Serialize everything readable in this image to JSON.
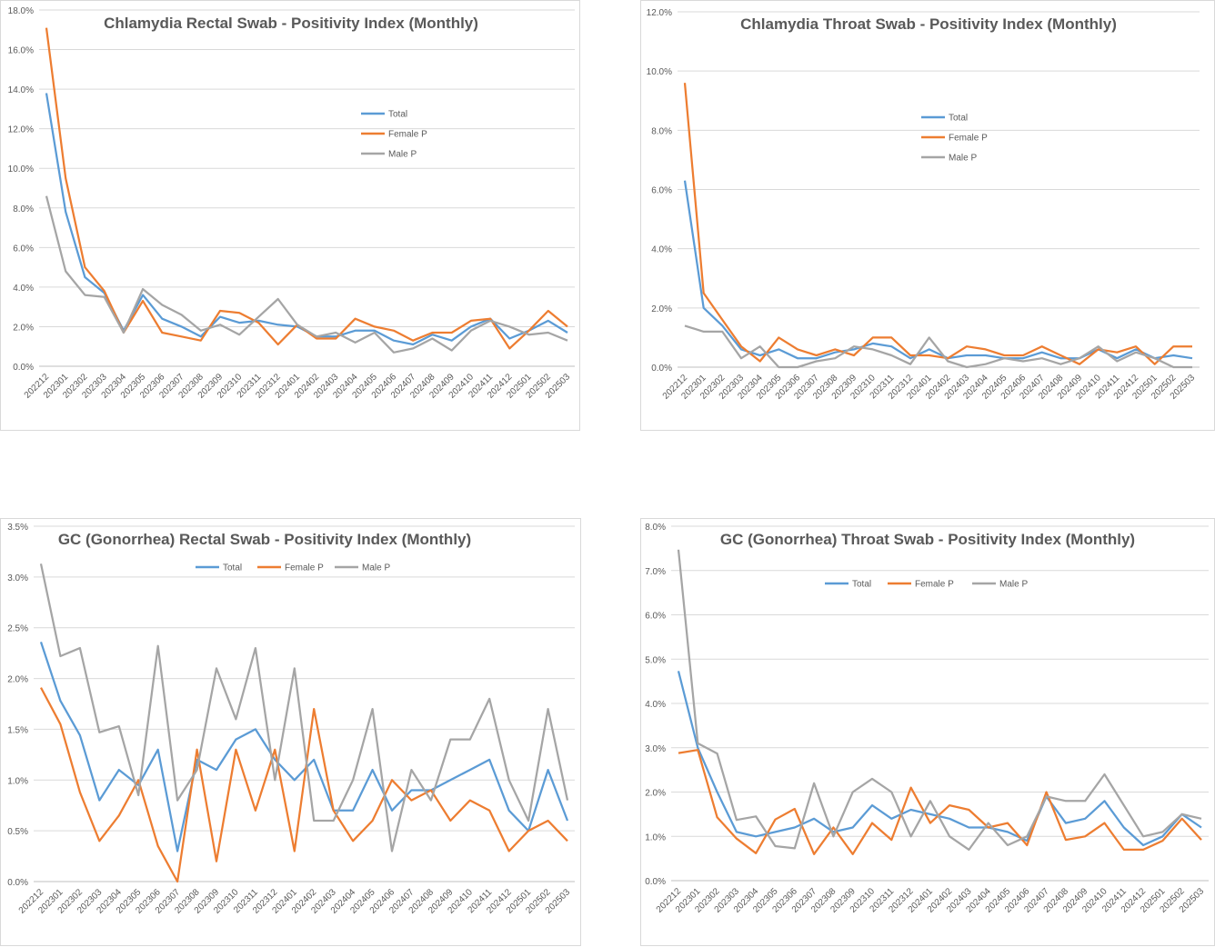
{
  "colors": {
    "total": "#5b9bd5",
    "female": "#ed7d31",
    "male": "#a5a5a5"
  },
  "chart_data": [
    {
      "type": "line",
      "title": "Chlamydia   Rectal Swab - Positivity  Index (Monthly)",
      "legend_position": "right-middle",
      "ylim": [
        0,
        0.18
      ],
      "ytick_step": 0.02,
      "ytick_labels": [
        "0.0%",
        "2.0%",
        "4.0%",
        "6.0%",
        "8.0%",
        "10.0%",
        "12.0%",
        "14.0%",
        "16.0%",
        "18.0%"
      ],
      "grid": true,
      "x": [
        "202212",
        "202301",
        "202302",
        "202303",
        "202304",
        "202305",
        "202306",
        "202307",
        "202308",
        "202309",
        "202310",
        "202311",
        "202312",
        "202401",
        "202402",
        "202403",
        "202404",
        "202405",
        "202406",
        "202407",
        "202408",
        "202409",
        "202410",
        "202411",
        "202412",
        "202501",
        "202502",
        "202503"
      ],
      "series": [
        {
          "name": "Total",
          "color": "#5b9bd5",
          "values": [
            0.138,
            0.078,
            0.045,
            0.037,
            0.018,
            0.036,
            0.024,
            0.02,
            0.015,
            0.025,
            0.022,
            0.023,
            0.021,
            0.02,
            0.015,
            0.015,
            0.018,
            0.018,
            0.013,
            0.011,
            0.016,
            0.013,
            0.02,
            0.024,
            0.014,
            0.018,
            0.023,
            0.017
          ]
        },
        {
          "name": "Female P",
          "color": "#ed7d31",
          "values": [
            0.171,
            0.095,
            0.05,
            0.038,
            0.017,
            0.033,
            0.017,
            0.015,
            0.013,
            0.028,
            0.027,
            0.022,
            0.011,
            0.021,
            0.014,
            0.014,
            0.024,
            0.02,
            0.018,
            0.013,
            0.017,
            0.017,
            0.023,
            0.024,
            0.009,
            0.018,
            0.028,
            0.02
          ]
        },
        {
          "name": "Male P",
          "color": "#a5a5a5",
          "values": [
            0.086,
            0.048,
            0.036,
            0.035,
            0.017,
            0.039,
            0.031,
            0.026,
            0.018,
            0.021,
            0.016,
            0.025,
            0.034,
            0.021,
            0.015,
            0.017,
            0.012,
            0.017,
            0.007,
            0.009,
            0.014,
            0.008,
            0.018,
            0.023,
            0.02,
            0.016,
            0.017,
            0.013
          ]
        }
      ]
    },
    {
      "type": "line",
      "title": "Chlamydia  Throat Swab - Positivity Index (Monthly)",
      "legend_position": "right-middle",
      "ylim": [
        0,
        0.12
      ],
      "ytick_step": 0.02,
      "ytick_labels": [
        "0.0%",
        "2.0%",
        "4.0%",
        "6.0%",
        "8.0%",
        "10.0%",
        "12.0%"
      ],
      "grid": true,
      "x": [
        "202212",
        "202301",
        "202302",
        "202303",
        "202304",
        "202305",
        "202306",
        "202307",
        "202308",
        "202309",
        "202310",
        "202311",
        "202312",
        "202401",
        "202402",
        "202403",
        "202404",
        "202405",
        "202406",
        "202407",
        "202408",
        "202409",
        "202410",
        "202411",
        "202412",
        "202501",
        "202502",
        "202503"
      ],
      "series": [
        {
          "name": "Total",
          "color": "#5b9bd5",
          "values": [
            0.063,
            0.02,
            0.014,
            0.006,
            0.004,
            0.006,
            0.003,
            0.003,
            0.005,
            0.006,
            0.008,
            0.007,
            0.003,
            0.006,
            0.003,
            0.004,
            0.004,
            0.003,
            0.003,
            0.005,
            0.003,
            0.003,
            0.006,
            0.003,
            0.006,
            0.003,
            0.004,
            0.003
          ]
        },
        {
          "name": "Female P",
          "color": "#ed7d31",
          "values": [
            0.096,
            0.025,
            0.016,
            0.007,
            0.002,
            0.01,
            0.006,
            0.004,
            0.006,
            0.004,
            0.01,
            0.01,
            0.004,
            0.004,
            0.003,
            0.007,
            0.006,
            0.004,
            0.004,
            0.007,
            0.004,
            0.001,
            0.006,
            0.005,
            0.007,
            0.001,
            0.007,
            0.007
          ]
        },
        {
          "name": "Male P",
          "color": "#a5a5a5",
          "values": [
            0.014,
            0.012,
            0.012,
            0.003,
            0.007,
            0.0,
            0.0,
            0.002,
            0.003,
            0.007,
            0.006,
            0.004,
            0.001,
            0.01,
            0.002,
            0.0,
            0.001,
            0.003,
            0.002,
            0.003,
            0.001,
            0.003,
            0.007,
            0.002,
            0.005,
            0.003,
            0.0,
            0.0
          ]
        }
      ]
    },
    {
      "type": "line",
      "title": "GC (Gonorrhea) Rectal Swab - Positivity Index (Monthly)",
      "legend_position": "top",
      "ylim": [
        0,
        0.035
      ],
      "ytick_step": 0.005,
      "ytick_labels": [
        "0.0%",
        "0.5%",
        "1.0%",
        "1.5%",
        "2.0%",
        "2.5%",
        "3.0%",
        "3.5%"
      ],
      "grid": true,
      "x": [
        "202212",
        "202301",
        "202302",
        "202303",
        "202304",
        "202305",
        "202306",
        "202307",
        "202308",
        "202309",
        "202310",
        "202311",
        "202312",
        "202401",
        "202402",
        "202403",
        "202404",
        "202405",
        "202406",
        "202407",
        "202408",
        "202409",
        "202410",
        "202411",
        "202412",
        "202501",
        "202502",
        "202503"
      ],
      "series": [
        {
          "name": "Total",
          "color": "#5b9bd5",
          "values": [
            0.0236,
            0.0178,
            0.0144,
            0.008,
            0.011,
            0.0095,
            0.013,
            0.003,
            0.012,
            0.011,
            0.014,
            0.015,
            0.012,
            0.01,
            0.012,
            0.007,
            0.007,
            0.011,
            0.007,
            0.009,
            0.009,
            0.01,
            0.011,
            0.012,
            0.007,
            0.005,
            0.011,
            0.006
          ]
        },
        {
          "name": "Female P",
          "color": "#ed7d31",
          "values": [
            0.0191,
            0.0155,
            0.0088,
            0.004,
            0.0065,
            0.01,
            0.0035,
            0.0,
            0.013,
            0.002,
            0.013,
            0.007,
            0.013,
            0.003,
            0.017,
            0.007,
            0.004,
            0.006,
            0.01,
            0.008,
            0.009,
            0.006,
            0.008,
            0.007,
            0.003,
            0.005,
            0.006,
            0.004
          ]
        },
        {
          "name": "Male P",
          "color": "#a5a5a5",
          "values": [
            0.0313,
            0.0222,
            0.023,
            0.0147,
            0.0153,
            0.0085,
            0.0232,
            0.008,
            0.011,
            0.021,
            0.016,
            0.023,
            0.01,
            0.021,
            0.006,
            0.006,
            0.01,
            0.017,
            0.003,
            0.011,
            0.008,
            0.014,
            0.014,
            0.018,
            0.01,
            0.006,
            0.017,
            0.008
          ]
        }
      ]
    },
    {
      "type": "line",
      "title": "GC (Gonorrhea) Throat Swab - Positivity Index (Monthly)",
      "legend_position": "top",
      "ylim": [
        0,
        0.08
      ],
      "ytick_step": 0.01,
      "ytick_labels": [
        "0.0%",
        "1.0%",
        "2.0%",
        "3.0%",
        "4.0%",
        "5.0%",
        "6.0%",
        "7.0%",
        "8.0%"
      ],
      "grid": true,
      "x": [
        "202212",
        "202301",
        "202302",
        "202303",
        "202304",
        "202305",
        "202306",
        "202307",
        "202308",
        "202309",
        "202310",
        "202311",
        "202312",
        "202401",
        "202402",
        "202403",
        "202404",
        "202405",
        "202406",
        "202407",
        "202408",
        "202409",
        "202410",
        "202411",
        "202412",
        "202501",
        "202502",
        "202503"
      ],
      "series": [
        {
          "name": "Total",
          "color": "#5b9bd5",
          "values": [
            0.0473,
            0.03,
            0.02,
            0.011,
            0.01,
            0.011,
            0.012,
            0.014,
            0.011,
            0.012,
            0.017,
            0.014,
            0.016,
            0.015,
            0.014,
            0.012,
            0.012,
            0.011,
            0.009,
            0.019,
            0.013,
            0.014,
            0.018,
            0.012,
            0.008,
            0.01,
            0.015,
            0.012
          ]
        },
        {
          "name": "Female P",
          "color": "#ed7d31",
          "values": [
            0.0288,
            0.0295,
            0.0143,
            0.0095,
            0.0062,
            0.0138,
            0.0162,
            0.006,
            0.012,
            0.006,
            0.013,
            0.0092,
            0.021,
            0.013,
            0.017,
            0.016,
            0.012,
            0.013,
            0.008,
            0.02,
            0.0092,
            0.01,
            0.013,
            0.007,
            0.007,
            0.009,
            0.014,
            0.0092
          ]
        },
        {
          "name": "Male P",
          "color": "#a5a5a5",
          "values": [
            0.0747,
            0.031,
            0.0287,
            0.0137,
            0.0145,
            0.0078,
            0.0073,
            0.022,
            0.01,
            0.02,
            0.023,
            0.02,
            0.01,
            0.018,
            0.01,
            0.007,
            0.013,
            0.008,
            0.01,
            0.019,
            0.018,
            0.018,
            0.024,
            0.017,
            0.01,
            0.011,
            0.015,
            0.014
          ]
        }
      ]
    }
  ]
}
